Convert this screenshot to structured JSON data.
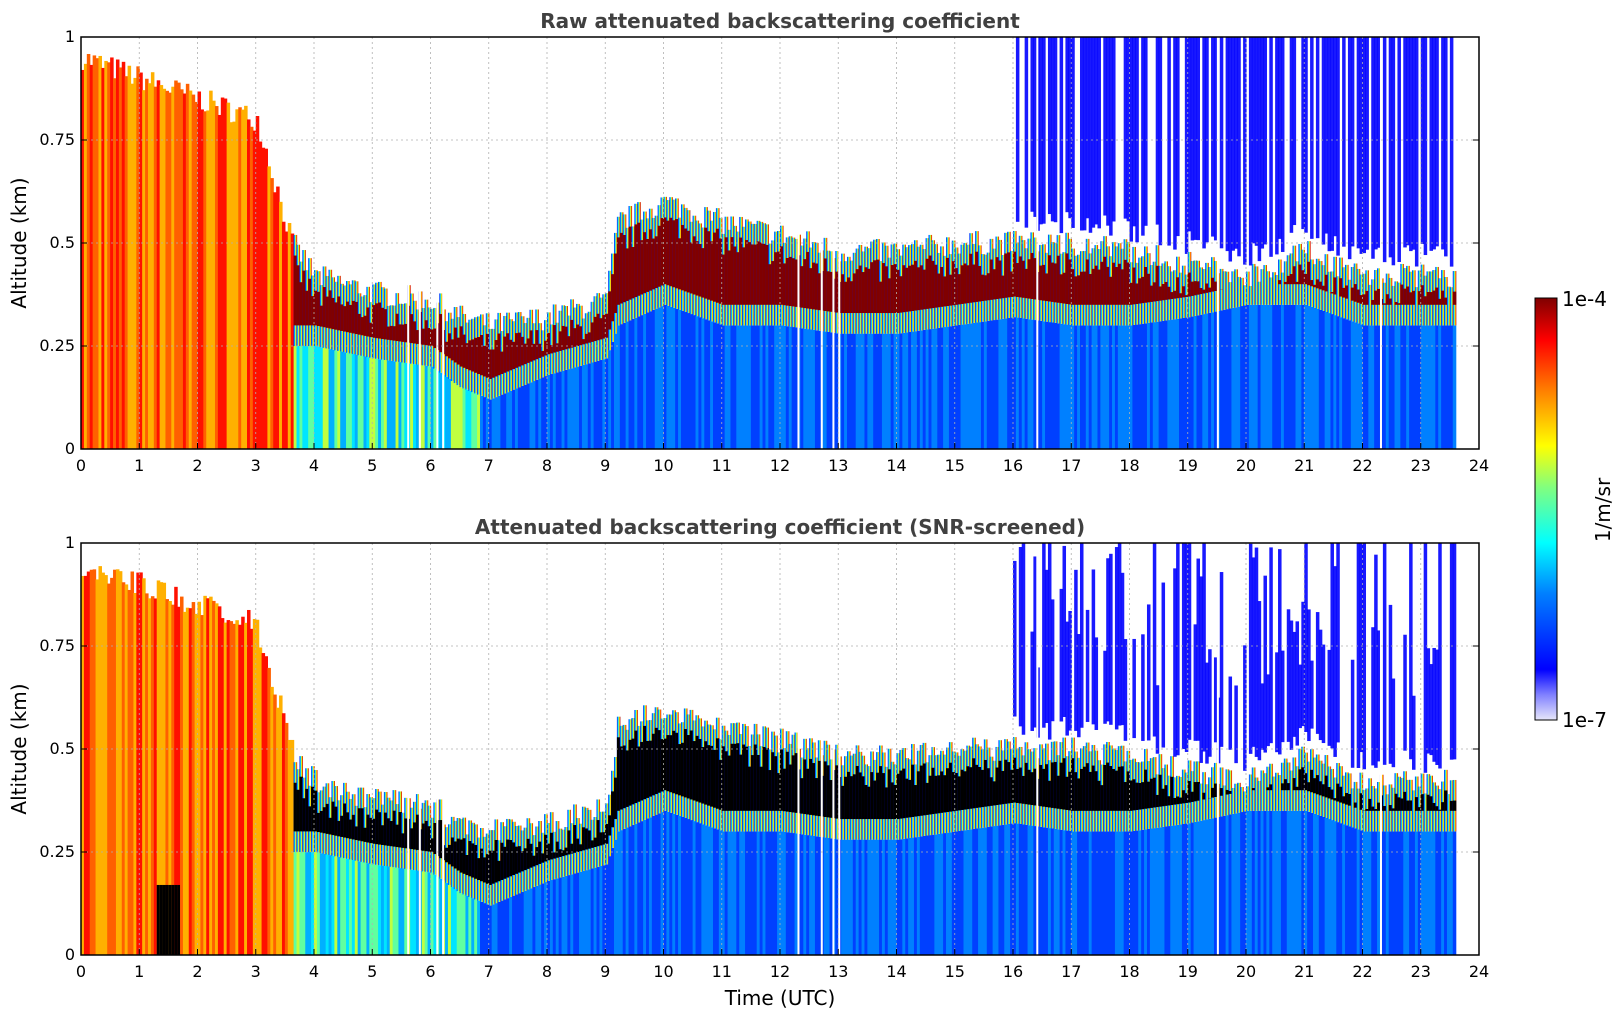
{
  "chart_data": [
    {
      "type": "heatmap",
      "title": "Raw attenuated backscattering coefficient",
      "xlabel": "",
      "ylabel": "Altitude (km)",
      "xlim": [
        0,
        24
      ],
      "ylim": [
        0,
        1
      ],
      "x_ticks": [
        "0",
        "1",
        "2",
        "3",
        "4",
        "5",
        "6",
        "7",
        "8",
        "9",
        "10",
        "11",
        "12",
        "13",
        "14",
        "15",
        "16",
        "17",
        "18",
        "19",
        "20",
        "21",
        "22",
        "23",
        "24"
      ],
      "y_ticks": [
        "0",
        "0.25",
        "0.5",
        "0.75",
        "1"
      ],
      "grid": true,
      "data_end_hour": 23.6,
      "layer_profile": {
        "hours": [
          0,
          1,
          2,
          3,
          3.6,
          4,
          5,
          6,
          6.5,
          7,
          8,
          9,
          9.2,
          10,
          11,
          12,
          13,
          14,
          15,
          16,
          17,
          18,
          19,
          20,
          21,
          22
        ],
        "top_km": [
          0.95,
          0.9,
          0.85,
          0.8,
          0.5,
          0.42,
          0.38,
          0.36,
          0.32,
          0.3,
          0.32,
          0.36,
          0.55,
          0.6,
          0.55,
          0.52,
          0.48,
          0.48,
          0.5,
          0.5,
          0.5,
          0.48,
          0.45,
          0.42,
          0.48,
          0.42
        ],
        "base_km": [
          0.0,
          0.0,
          0.0,
          0.0,
          0.25,
          0.25,
          0.22,
          0.2,
          0.15,
          0.12,
          0.18,
          0.22,
          0.3,
          0.35,
          0.3,
          0.3,
          0.28,
          0.28,
          0.3,
          0.32,
          0.3,
          0.3,
          0.32,
          0.35,
          0.35,
          0.3
        ]
      }
    },
    {
      "type": "heatmap",
      "title": "Attenuated backscattering coefficient (SNR-screened)",
      "xlabel": "Time (UTC)",
      "ylabel": "Altitude (km)",
      "xlim": [
        0,
        24
      ],
      "ylim": [
        0,
        1
      ],
      "x_ticks": [
        "0",
        "1",
        "2",
        "3",
        "4",
        "5",
        "6",
        "7",
        "8",
        "9",
        "10",
        "11",
        "12",
        "13",
        "14",
        "15",
        "16",
        "17",
        "18",
        "19",
        "20",
        "21",
        "22",
        "23",
        "24"
      ],
      "y_ticks": [
        "0",
        "0.25",
        "0.5",
        "0.75",
        "1"
      ],
      "grid": true,
      "data_end_hour": 23.6,
      "saturated_color": "#000000"
    }
  ],
  "colorbar": {
    "label": "1/m/sr",
    "max_label": "1e-4",
    "min_label": "1e-7",
    "scale": "log",
    "colormap": [
      "#e6e6fa",
      "#0000ff",
      "#0080ff",
      "#00ffff",
      "#80ff80",
      "#ffff00",
      "#ff8000",
      "#ff0000",
      "#800000"
    ]
  },
  "colors": {
    "background": "#ffffff",
    "axis": "#000000",
    "title": "#404040",
    "grid": "#b0b0b0"
  }
}
